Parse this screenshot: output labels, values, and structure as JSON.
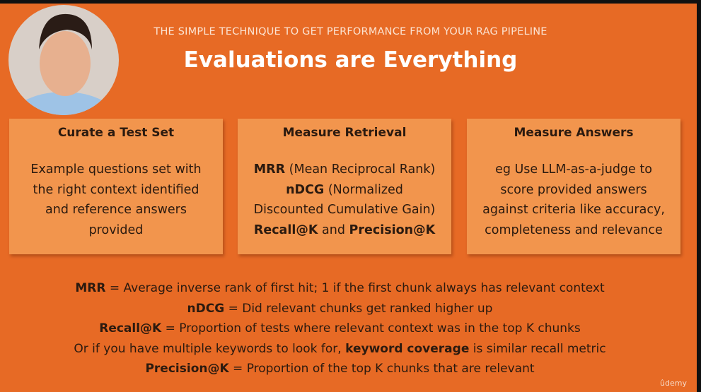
{
  "header": {
    "subtitle": "THE SIMPLE TECHNIQUE TO GET PERFORMANCE FROM YOUR RAG PIPELINE",
    "title": "Evaluations are Everything"
  },
  "cards": [
    {
      "title": "Curate a Test Set",
      "lines": [
        [
          {
            "text": "Example questions set with",
            "bold": false
          }
        ],
        [
          {
            "text": "the right context identified",
            "bold": false
          }
        ],
        [
          {
            "text": "and reference answers",
            "bold": false
          }
        ],
        [
          {
            "text": "provided",
            "bold": false
          }
        ]
      ]
    },
    {
      "title": "Measure Retrieval",
      "lines": [
        [
          {
            "text": "MRR",
            "bold": true
          },
          {
            "text": " (Mean Reciprocal Rank)",
            "bold": false
          }
        ],
        [
          {
            "text": "nDCG",
            "bold": true
          },
          {
            "text": " (Normalized",
            "bold": false
          }
        ],
        [
          {
            "text": "Discounted Cumulative Gain)",
            "bold": false
          }
        ],
        [
          {
            "text": "Recall@K",
            "bold": true
          },
          {
            "text": " and ",
            "bold": false
          },
          {
            "text": "Precision@K",
            "bold": true
          }
        ]
      ]
    },
    {
      "title": "Measure Answers",
      "lines": [
        [
          {
            "text": "eg Use LLM-as-a-judge to",
            "bold": false
          }
        ],
        [
          {
            "text": "score provided answers",
            "bold": false
          }
        ],
        [
          {
            "text": "against criteria like accuracy,",
            "bold": false
          }
        ],
        [
          {
            "text": "completeness and relevance",
            "bold": false
          }
        ]
      ]
    }
  ],
  "notes": [
    [
      {
        "text": "MRR",
        "bold": true
      },
      {
        "text": " = Average inverse rank of first hit; 1 if the first chunk always has relevant context",
        "bold": false
      }
    ],
    [
      {
        "text": "nDCG",
        "bold": true
      },
      {
        "text": " = Did relevant chunks get ranked higher up",
        "bold": false
      }
    ],
    [
      {
        "text": "Recall@K",
        "bold": true
      },
      {
        "text": " = Proportion of tests where relevant context was in the top K chunks",
        "bold": false
      }
    ],
    [
      {
        "text": "Or if you have multiple keywords to look for, ",
        "bold": false
      },
      {
        "text": "keyword coverage",
        "bold": true
      },
      {
        "text": " is similar recall metric",
        "bold": false
      }
    ],
    [
      {
        "text": "Precision@K",
        "bold": true
      },
      {
        "text": " = Proportion of the top K chunks that are relevant",
        "bold": false
      }
    ]
  ],
  "watermark": "ûdemy"
}
